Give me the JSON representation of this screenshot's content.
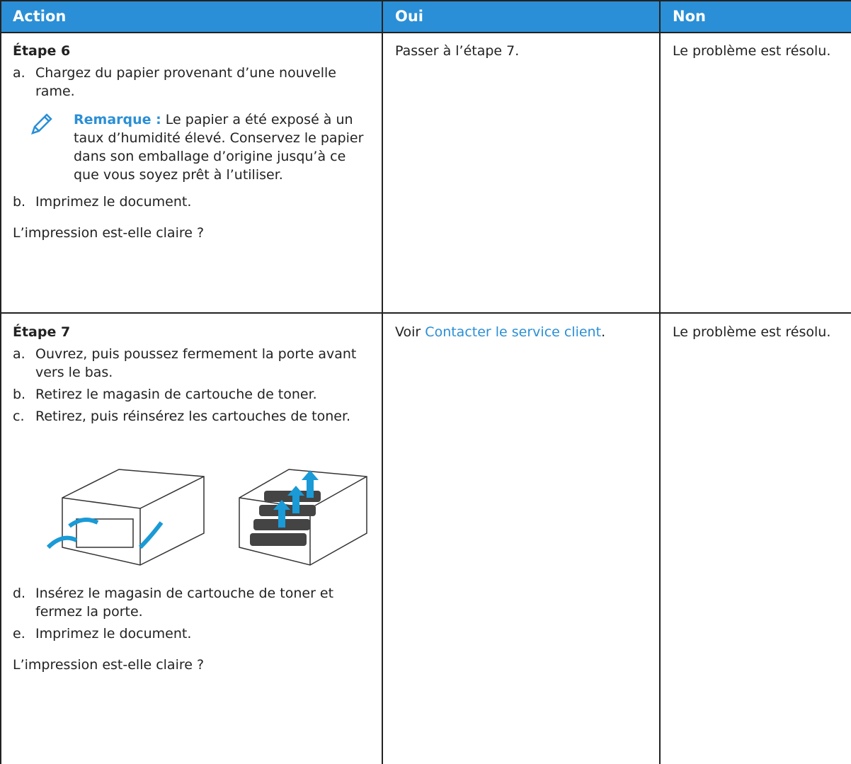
{
  "table": {
    "header": [
      "Action",
      "Oui",
      "Non"
    ],
    "rows": [
      {
        "action": {
          "step": "Étape 6",
          "list1": [
            {
              "marker": "a.",
              "text": "Chargez du papier provenant d’une nouvelle rame."
            }
          ],
          "note": {
            "label": "Remarque :",
            "text": "Le papier a été exposé à un taux d’humidité élevé. Conservez le papier dans son emballage d’origine jusqu’à ce que vous soyez prêt à l’utiliser."
          },
          "list2": [
            {
              "marker": "b.",
              "text": "Imprimez le document."
            }
          ],
          "question": "L’impression est-elle claire ?"
        },
        "oui": {
          "text": "Passer à l’étape 7."
        },
        "non": "Le problème est résolu."
      },
      {
        "action": {
          "step": "Étape 7",
          "list1": [
            {
              "marker": "a.",
              "text": "Ouvrez, puis poussez fermement la porte avant vers le bas."
            },
            {
              "marker": "b.",
              "text": "Retirez le magasin de cartouche de toner."
            },
            {
              "marker": "c.",
              "text": "Retirez, puis réinsérez les cartouches de toner."
            }
          ],
          "list2": [
            {
              "marker": "d.",
              "text": "Insérez le magasin de cartouche de toner et fermez la porte."
            },
            {
              "marker": "e.",
              "text": "Imprimez le document."
            }
          ],
          "question": "L’impression est-elle claire ?"
        },
        "oui": {
          "prefix": "Voir",
          "link": "Contacter le service client",
          "suffix": "."
        },
        "non": "Le problème est résolu."
      }
    ]
  }
}
